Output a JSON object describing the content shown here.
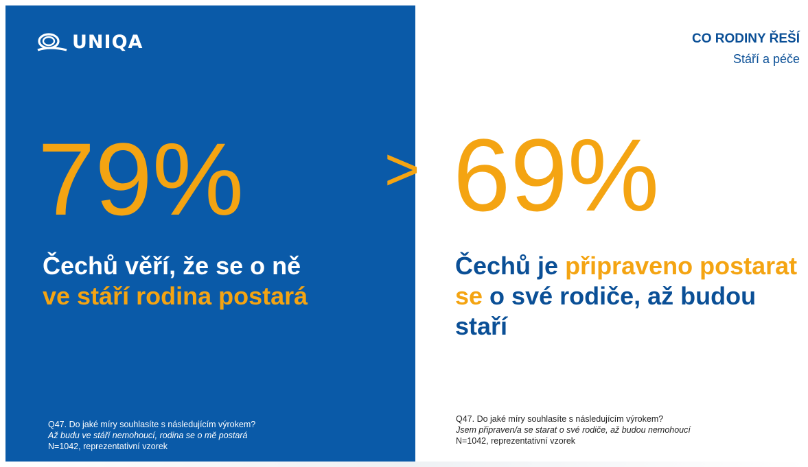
{
  "logo": {
    "text": "UNIQA",
    "icon": "uniqa-logo-icon"
  },
  "header": {
    "title": "CO RODINY ŘEŠÍ",
    "subtitle": "Stáří a péče"
  },
  "left": {
    "percent": "79%",
    "statement_part1": "Čechů věří, že se o ně ",
    "statement_accent": "ve stáří rodina postará",
    "note_question": "Q47. Do jaké míry souhlasíte s následujícím výrokem?",
    "note_statement": "Až budu ve stáří nemohoucí, rodina se o mě postará",
    "note_sample": "N=1042, reprezentativní vzorek"
  },
  "comparison_sign": ">",
  "right": {
    "percent": "69%",
    "statement_part1": "Čechů je ",
    "statement_accent": "připraveno postarat se",
    "statement_part2": " o své rodiče, až budou staří",
    "note_question": "Q47. Do jaké míry souhlasíte s následujícím výrokem?",
    "note_statement": "Jsem připraven/a se starat o své rodiče, až budou nemohoucí",
    "note_sample": "N=1042, reprezentativní vzorek"
  },
  "colors": {
    "brand_blue": "#0a5aa8",
    "accent_orange": "#f4a412",
    "text_blue": "#0a4f96"
  }
}
